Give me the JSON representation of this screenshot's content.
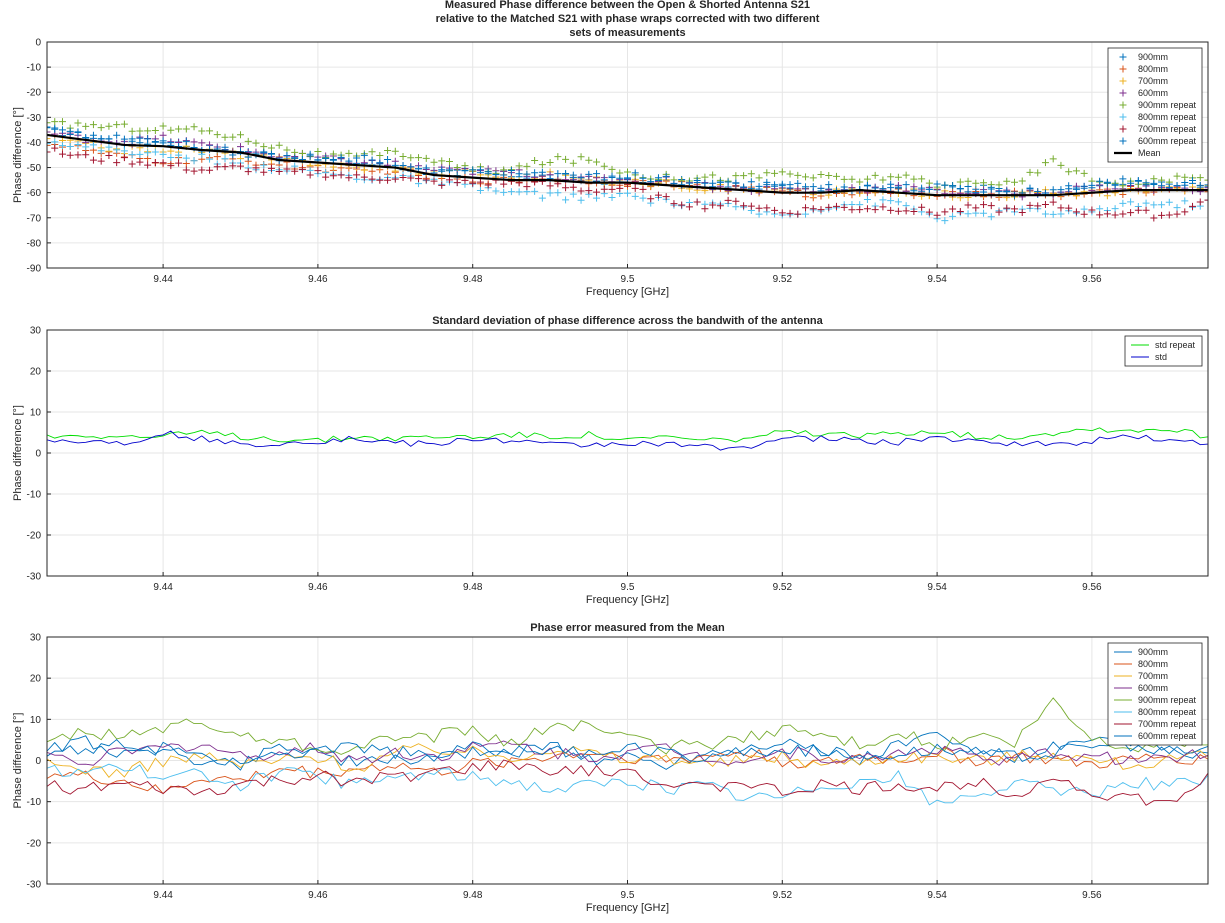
{
  "chart_data": [
    {
      "type": "scatter",
      "title": [
        "Measured Phase difference between the Open & Shorted Antenna S21",
        "relative to the Matched S21 with phase wraps corrected with two different",
        "sets of measurements"
      ],
      "xlabel": "Frequency [GHz]",
      "ylabel": "Phase difference [°]",
      "xlim": [
        9.425,
        9.575
      ],
      "ylim": [
        -90,
        0
      ],
      "xticks": [
        9.44,
        9.46,
        9.48,
        9.5,
        9.52,
        9.54,
        9.56
      ],
      "xtick_labels": [
        "9.44",
        "9.46",
        "9.48",
        "9.5",
        "9.52",
        "9.54",
        "9.56"
      ],
      "yticks": [
        0,
        -10,
        -20,
        -30,
        -40,
        -50,
        -60,
        -70,
        -80,
        -90
      ],
      "ytick_labels": [
        "0",
        "-10",
        "-20",
        "-30",
        "-40",
        "-50",
        "-60",
        "-70",
        "-80",
        "-90"
      ],
      "grid": true,
      "legend_position": "top-right",
      "mean_points_x": [
        9.425,
        9.43,
        9.435,
        9.44,
        9.445,
        9.45,
        9.455,
        9.46,
        9.465,
        9.47,
        9.475,
        9.48,
        9.485,
        9.49,
        9.495,
        9.5,
        9.505,
        9.51,
        9.515,
        9.52,
        9.525,
        9.53,
        9.535,
        9.54,
        9.545,
        9.55,
        9.555,
        9.56,
        9.565,
        9.57,
        9.575
      ],
      "series": [
        {
          "name": "900mm",
          "color": "#0072BD",
          "marker": "+",
          "offset": [
            2,
            1.5,
            1,
            2,
            1,
            0.5,
            2,
            1.5,
            1,
            0.5,
            1,
            1.5,
            2,
            1.5,
            1,
            0.5,
            1,
            1.5,
            2,
            2.5,
            1.5,
            1,
            2,
            2.5,
            3,
            2,
            1.5,
            2.5,
            3,
            2,
            1.5
          ]
        },
        {
          "name": "800mm",
          "color": "#D95319",
          "marker": "+",
          "offset": [
            -3,
            -4,
            -5,
            -6,
            -4,
            -3,
            -2,
            -2,
            -3,
            -1,
            -1,
            -1,
            0,
            0.5,
            1,
            0,
            0.5,
            0,
            1,
            0,
            -1,
            0,
            0,
            0.5,
            0,
            1,
            0,
            -0.5,
            0,
            1,
            0.5
          ]
        },
        {
          "name": "700mm",
          "color": "#EDB120",
          "marker": "+",
          "offset": [
            -1,
            -2,
            -2,
            -1,
            0,
            -1,
            0,
            0,
            -1,
            0,
            1,
            2,
            1,
            2,
            1,
            0,
            1,
            0,
            0.5,
            1,
            0,
            -0.5,
            0,
            1,
            0,
            0.5,
            1,
            0,
            -0.5,
            0,
            1
          ]
        },
        {
          "name": "600mm",
          "color": "#7E2F8E",
          "marker": "+",
          "offset": [
            1,
            0.5,
            1.5,
            3,
            2,
            1,
            1.5,
            2,
            1,
            1.5,
            2,
            2.5,
            3,
            2,
            1,
            1.5,
            2,
            1,
            0.5,
            1.5,
            1,
            0.5,
            2,
            1.5,
            1,
            0.5,
            1.5,
            2,
            1,
            0.5,
            1
          ]
        },
        {
          "name": "900mm repeat",
          "color": "#77AC30",
          "marker": "+",
          "offset": [
            4,
            6,
            7,
            7,
            8,
            6,
            5,
            3,
            3,
            6,
            6,
            3,
            4,
            8,
            9,
            4,
            3,
            4,
            5,
            8,
            6,
            4,
            7,
            3,
            6,
            4,
            14,
            5,
            3,
            4,
            5
          ]
        },
        {
          "name": "800mm repeat",
          "color": "#4DBEEE",
          "marker": "+",
          "offset": [
            -2,
            -3,
            -2,
            -4,
            -3,
            -5,
            -3,
            -4,
            -5,
            -4,
            -3,
            -4,
            -5,
            -6,
            -6,
            -5,
            -7,
            -6,
            -8,
            -9,
            -6,
            -5,
            -4,
            -9,
            -8,
            -6,
            -7,
            -8,
            -5,
            -6,
            -5
          ]
        },
        {
          "name": "700mm repeat",
          "color": "#A2142F",
          "marker": "+",
          "offset": [
            -6,
            -7,
            -6,
            -7,
            -8,
            -6,
            -5,
            -4,
            -5,
            -4,
            -3,
            -2,
            -1,
            -2,
            -3,
            -2,
            -6,
            -7,
            -5,
            -8,
            -6,
            -7,
            -6,
            -7,
            -5,
            -6,
            -4,
            -8,
            -9,
            -10,
            -4
          ]
        },
        {
          "name": "600mm repeat",
          "color": "#0072BD",
          "marker": "+",
          "offset": [
            3,
            2,
            3,
            2,
            1,
            0,
            1,
            2,
            3,
            2,
            1,
            2,
            3,
            2,
            2,
            3,
            2,
            1,
            2,
            3,
            2,
            1,
            2,
            3,
            2,
            1,
            2,
            4,
            3,
            2,
            3
          ]
        },
        {
          "name": "Mean",
          "color": "#000000",
          "marker": "line",
          "values": [
            -37,
            -39,
            -41,
            -41.5,
            -43,
            -44,
            -47,
            -48,
            -49,
            -50,
            -53,
            -54,
            -55,
            -55,
            -56,
            -56,
            -57,
            -58,
            -59,
            -60,
            -60,
            -59,
            -60,
            -61,
            -61,
            -61,
            -61,
            -60,
            -59,
            -59,
            -59
          ]
        }
      ]
    },
    {
      "type": "line",
      "title": [
        "Standard deviation of phase difference across the bandwith of the antenna"
      ],
      "xlabel": "Frequency [GHz]",
      "ylabel": "Phase difference [°]",
      "xlim": [
        9.425,
        9.575
      ],
      "ylim": [
        -30,
        30
      ],
      "xticks": [
        9.44,
        9.46,
        9.48,
        9.5,
        9.52,
        9.54,
        9.56
      ],
      "xtick_labels": [
        "9.44",
        "9.46",
        "9.48",
        "9.5",
        "9.52",
        "9.54",
        "9.56"
      ],
      "yticks": [
        30,
        20,
        10,
        0,
        -10,
        -20,
        -30
      ],
      "ytick_labels": [
        "30",
        "20",
        "10",
        "0",
        "-10",
        "-20",
        "-30"
      ],
      "grid": true,
      "legend_position": "top-right",
      "x": [
        9.425,
        9.43,
        9.435,
        9.44,
        9.445,
        9.45,
        9.455,
        9.46,
        9.465,
        9.47,
        9.475,
        9.48,
        9.485,
        9.49,
        9.495,
        9.5,
        9.505,
        9.51,
        9.515,
        9.52,
        9.525,
        9.53,
        9.535,
        9.54,
        9.545,
        9.55,
        9.555,
        9.56,
        9.565,
        9.57,
        9.575
      ],
      "series": [
        {
          "name": "std repeat",
          "color": "#00DD00",
          "values": [
            4,
            4.5,
            4,
            4,
            5,
            4,
            3.5,
            3,
            4,
            3.5,
            4,
            4,
            4.5,
            4,
            4.5,
            3,
            4,
            3,
            3.5,
            5,
            4.5,
            4,
            5,
            5.5,
            4,
            4,
            5,
            6,
            5.5,
            6,
            4
          ]
        },
        {
          "name": "std",
          "color": "#0000CC",
          "values": [
            3,
            3,
            2.5,
            5,
            3.5,
            2,
            2.5,
            3,
            3.5,
            2.5,
            2,
            3.5,
            3,
            2,
            2,
            2.5,
            2,
            1.5,
            1.5,
            3.5,
            3.5,
            3,
            2.5,
            4,
            2.5,
            2.5,
            2,
            3,
            4.5,
            3,
            2.5
          ]
        }
      ]
    },
    {
      "type": "line",
      "title": [
        "Phase error measured from the Mean"
      ],
      "xlabel": "Frequency [GHz]",
      "ylabel": "Phase difference [°]",
      "xlim": [
        9.425,
        9.575
      ],
      "ylim": [
        -30,
        30
      ],
      "xticks": [
        9.44,
        9.46,
        9.48,
        9.5,
        9.52,
        9.54,
        9.56
      ],
      "xtick_labels": [
        "9.44",
        "9.46",
        "9.48",
        "9.5",
        "9.52",
        "9.54",
        "9.56"
      ],
      "yticks": [
        30,
        20,
        10,
        0,
        -10,
        -20,
        -30
      ],
      "ytick_labels": [
        "30",
        "20",
        "10",
        "0",
        "-10",
        "-20",
        "-30"
      ],
      "grid": true,
      "legend_position": "top-right",
      "x": [
        9.425,
        9.43,
        9.435,
        9.44,
        9.445,
        9.45,
        9.455,
        9.46,
        9.465,
        9.47,
        9.475,
        9.48,
        9.485,
        9.49,
        9.495,
        9.5,
        9.505,
        9.51,
        9.515,
        9.52,
        9.525,
        9.53,
        9.535,
        9.54,
        9.545,
        9.55,
        9.555,
        9.56,
        9.565,
        9.57,
        9.575
      ],
      "series": [
        {
          "name": "900mm",
          "color": "#0072BD",
          "values": [
            2,
            5,
            1,
            3,
            0,
            -1,
            4,
            2,
            -1,
            0,
            1,
            3,
            2,
            4,
            0,
            1,
            -1,
            2,
            3,
            5,
            2,
            0,
            4,
            6,
            2,
            1,
            3,
            4,
            5,
            2,
            1
          ]
        },
        {
          "name": "800mm",
          "color": "#D95319",
          "values": [
            -3,
            -4,
            -5,
            -8,
            -4,
            -5,
            -2,
            -3,
            -2,
            -1,
            -3,
            -1,
            0,
            1,
            2,
            1,
            0,
            1,
            2,
            0,
            -1,
            1,
            0,
            2,
            0,
            1,
            0,
            -1,
            0,
            1,
            0
          ]
        },
        {
          "name": "700mm",
          "color": "#EDB120",
          "values": [
            -1,
            -2,
            -3,
            0,
            1,
            -1,
            0,
            1,
            -2,
            2,
            3,
            2,
            1,
            3,
            2,
            0,
            1,
            -1,
            0,
            1,
            -1,
            0,
            1,
            1,
            0,
            1,
            2,
            0,
            -1,
            0,
            1
          ]
        },
        {
          "name": "600mm",
          "color": "#7E2F8E",
          "values": [
            1,
            0,
            2,
            3,
            4,
            1,
            2,
            3,
            0,
            2,
            1,
            3,
            4,
            2,
            1,
            2,
            3,
            1,
            0,
            2,
            1,
            0,
            2,
            3,
            1,
            0,
            2,
            1,
            0,
            1,
            2
          ]
        },
        {
          "name": "900mm repeat",
          "color": "#77AC30",
          "values": [
            4,
            7,
            6,
            8,
            9,
            6,
            5,
            3,
            3,
            6,
            6,
            7,
            4,
            8,
            9,
            5,
            3,
            4,
            5,
            8,
            6,
            4,
            7,
            3,
            6,
            4,
            14,
            5,
            3,
            4,
            5
          ]
        },
        {
          "name": "800mm repeat",
          "color": "#4DBEEE",
          "values": [
            -2,
            -3,
            -1,
            -5,
            -3,
            -6,
            -3,
            -4,
            -6,
            -4,
            -3,
            -4,
            -5,
            -7,
            -6,
            -5,
            -7,
            -6,
            -9,
            -9,
            -6,
            -5,
            -4,
            -11,
            -8,
            -6,
            -7,
            -8,
            -5,
            -6,
            -5
          ]
        },
        {
          "name": "700mm repeat",
          "color": "#A2142F",
          "values": [
            -6,
            -7,
            -6,
            -7,
            -8,
            -6,
            -5,
            -4,
            -5,
            -4,
            -3,
            -2,
            -1,
            -2,
            -3,
            -2,
            -6,
            -7,
            -5,
            -8,
            -6,
            -7,
            -6,
            -7,
            -5,
            -8,
            -4,
            -8,
            -9,
            -11,
            -4
          ]
        },
        {
          "name": "600mm repeat",
          "color": "#0072BD",
          "values": [
            3,
            2,
            4,
            2,
            1,
            0,
            1,
            2,
            3,
            2,
            1,
            2,
            3,
            2,
            2,
            3,
            2,
            1,
            2,
            3,
            2,
            1,
            2,
            3,
            2,
            1,
            2,
            4,
            3,
            2,
            3
          ]
        }
      ]
    }
  ]
}
